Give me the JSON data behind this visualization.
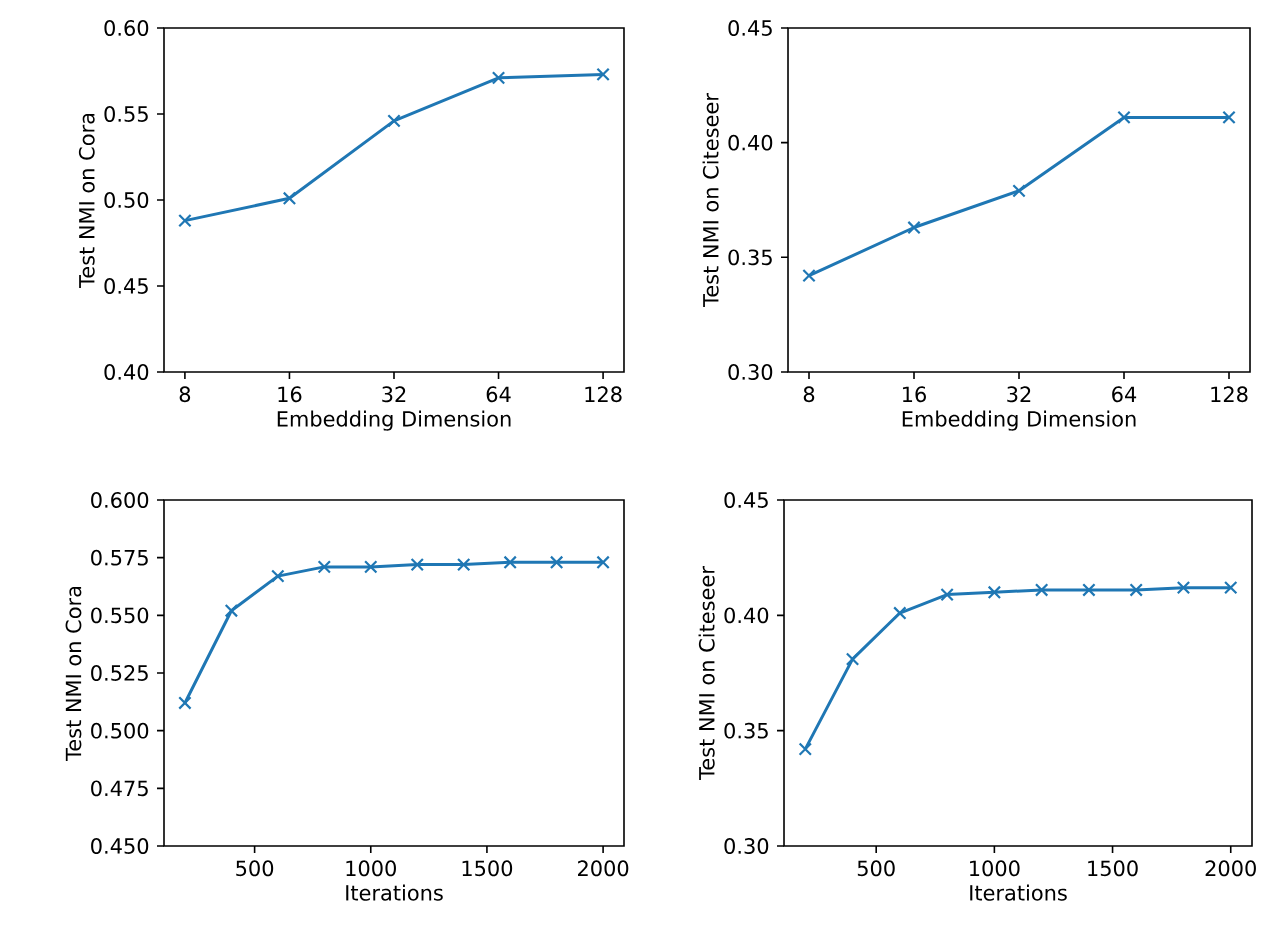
{
  "chart_data": [
    {
      "type": "line",
      "xlabel": "Embedding Dimension",
      "ylabel": "Test NMI on Cora",
      "categories": [
        "8",
        "16",
        "32",
        "64",
        "128"
      ],
      "marker": "cross",
      "line_style": "solid",
      "series": [
        {
          "color": "#1f77b4",
          "values": [
            0.488,
            0.501,
            0.546,
            0.571,
            0.573
          ]
        }
      ],
      "ylim": [
        0.4,
        0.6
      ],
      "yticks": [
        {
          "value": 0.4,
          "label": "0.40"
        },
        {
          "value": 0.45,
          "label": "0.45"
        },
        {
          "value": 0.5,
          "label": "0.50"
        },
        {
          "value": 0.55,
          "label": "0.55"
        },
        {
          "value": 0.6,
          "label": "0.60"
        }
      ]
    },
    {
      "type": "line",
      "xlabel": "Embedding Dimension",
      "ylabel": "Test NMI on Citeseer",
      "categories": [
        "8",
        "16",
        "32",
        "64",
        "128"
      ],
      "marker": "cross",
      "line_style": "solid",
      "series": [
        {
          "color": "#1f77b4",
          "values": [
            0.342,
            0.363,
            0.379,
            0.411,
            0.411
          ]
        }
      ],
      "ylim": [
        0.3,
        0.45
      ],
      "yticks": [
        {
          "value": 0.3,
          "label": "0.30"
        },
        {
          "value": 0.35,
          "label": "0.35"
        },
        {
          "value": 0.4,
          "label": "0.40"
        },
        {
          "value": 0.45,
          "label": "0.45"
        }
      ]
    },
    {
      "type": "line",
      "xlabel": "Iterations",
      "ylabel": "Test NMI on Cora",
      "x": [
        200,
        400,
        600,
        800,
        1000,
        1200,
        1400,
        1600,
        1800,
        2000
      ],
      "marker": "cross",
      "line_style": "solid",
      "series": [
        {
          "color": "#1f77b4",
          "values": [
            0.512,
            0.552,
            0.567,
            0.571,
            0.571,
            0.572,
            0.572,
            0.573,
            0.573,
            0.573
          ]
        }
      ],
      "xlim": [
        110,
        2090
      ],
      "xticks": [
        500,
        1000,
        1500,
        2000
      ],
      "ylim": [
        0.45,
        0.6
      ],
      "yticks": [
        {
          "value": 0.45,
          "label": "0.450"
        },
        {
          "value": 0.475,
          "label": "0.475"
        },
        {
          "value": 0.5,
          "label": "0.500"
        },
        {
          "value": 0.525,
          "label": "0.525"
        },
        {
          "value": 0.55,
          "label": "0.550"
        },
        {
          "value": 0.575,
          "label": "0.575"
        },
        {
          "value": 0.6,
          "label": "0.600"
        }
      ]
    },
    {
      "type": "line",
      "xlabel": "Iterations",
      "ylabel": "Test NMI on Citeseer",
      "x": [
        200,
        400,
        600,
        800,
        1000,
        1200,
        1400,
        1600,
        1800,
        2000
      ],
      "marker": "cross",
      "line_style": "solid",
      "series": [
        {
          "color": "#1f77b4",
          "values": [
            0.342,
            0.381,
            0.401,
            0.409,
            0.41,
            0.411,
            0.411,
            0.411,
            0.412,
            0.412
          ]
        }
      ],
      "xlim": [
        110,
        2090
      ],
      "xticks": [
        500,
        1000,
        1500,
        2000
      ],
      "ylim": [
        0.3,
        0.45
      ],
      "yticks": [
        {
          "value": 0.3,
          "label": "0.30"
        },
        {
          "value": 0.35,
          "label": "0.35"
        },
        {
          "value": 0.4,
          "label": "0.40"
        },
        {
          "value": 0.45,
          "label": "0.45"
        }
      ]
    }
  ]
}
